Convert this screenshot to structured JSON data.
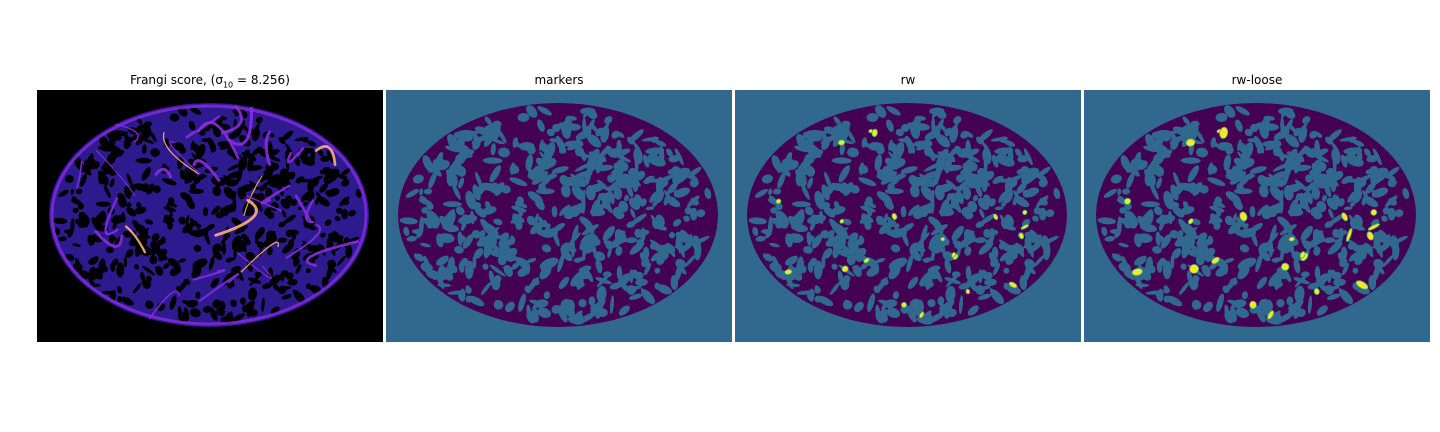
{
  "panels": [
    {
      "id": "frangi",
      "title_main": "Frangi score, (σ",
      "title_sub": "10",
      "title_rest": " = 8.256)"
    },
    {
      "id": "markers",
      "title": "markers"
    },
    {
      "id": "rw",
      "title": "rw"
    },
    {
      "id": "rw_loose",
      "title": "rw-loose"
    }
  ],
  "colors": {
    "frangi_background": "#000000",
    "frangi_low": "#2d1a8f",
    "frangi_mid": "#8a2be2",
    "frangi_high": "#ffb070",
    "label_background": "#31688e",
    "label_foreground": "#440154",
    "label_highlight": "#fde725",
    "label_highlight_edge": "#35b779"
  }
}
